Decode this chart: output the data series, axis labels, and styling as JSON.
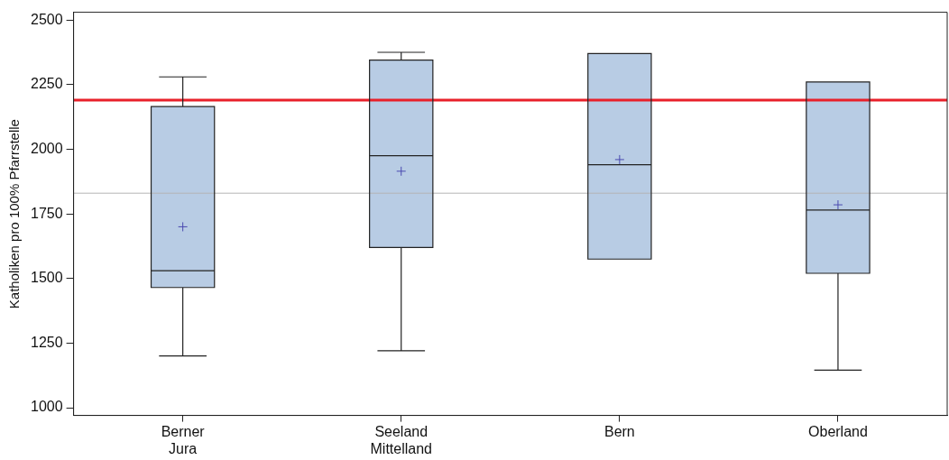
{
  "chart_data": {
    "type": "box",
    "ylabel": "Katholiken pro 100% Pfarrstelle",
    "categories": [
      "Berner Jura",
      "Seeland Mittelland",
      "Bern",
      "Oberland"
    ],
    "color": "#b8cce4",
    "boxes": [
      {
        "low": 1200,
        "q1": 1465,
        "median": 1530,
        "q3": 2165,
        "high": 2280,
        "mean": 1700
      },
      {
        "low": 1220,
        "q1": 1620,
        "median": 1975,
        "q3": 2345,
        "high": 2375,
        "mean": 1915
      },
      {
        "low": 1575,
        "q1": 1575,
        "median": 1940,
        "q3": 2370,
        "high": 2370,
        "mean": 1960
      },
      {
        "low": 1145,
        "q1": 1520,
        "median": 1765,
        "q3": 2260,
        "high": 2260,
        "mean": 1785
      }
    ],
    "ylim": [
      970,
      2530
    ],
    "yticks": [
      1000,
      1250,
      1500,
      1750,
      2000,
      2250,
      2500
    ],
    "grid": false,
    "ref_lines": [
      {
        "axis": "y",
        "value": 2190,
        "color": "#e8202a"
      },
      {
        "axis": "y",
        "value": 1830,
        "color": "#b4b4b4"
      }
    ]
  }
}
